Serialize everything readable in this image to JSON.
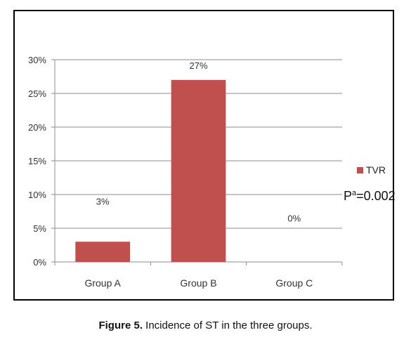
{
  "chart_data": {
    "type": "bar",
    "categories": [
      "Group A",
      "Group B",
      "Group C"
    ],
    "series": [
      {
        "name": "TVR",
        "values": [
          3,
          27,
          0
        ],
        "color": "#c0504d"
      }
    ],
    "data_labels": [
      "3%",
      "27%",
      "0%"
    ],
    "y_ticks": [
      "0%",
      "5%",
      "10%",
      "15%",
      "20%",
      "25%",
      "30%"
    ],
    "ylim": [
      0,
      30
    ],
    "grid": true,
    "legend": {
      "position": "right",
      "entries": [
        "TVR"
      ]
    },
    "annotation": {
      "base": "P",
      "superscript": "a",
      "rest": "=0.002"
    }
  },
  "caption": {
    "lead": "Figure 5.",
    "text": " Incidence of ST in the three groups."
  }
}
